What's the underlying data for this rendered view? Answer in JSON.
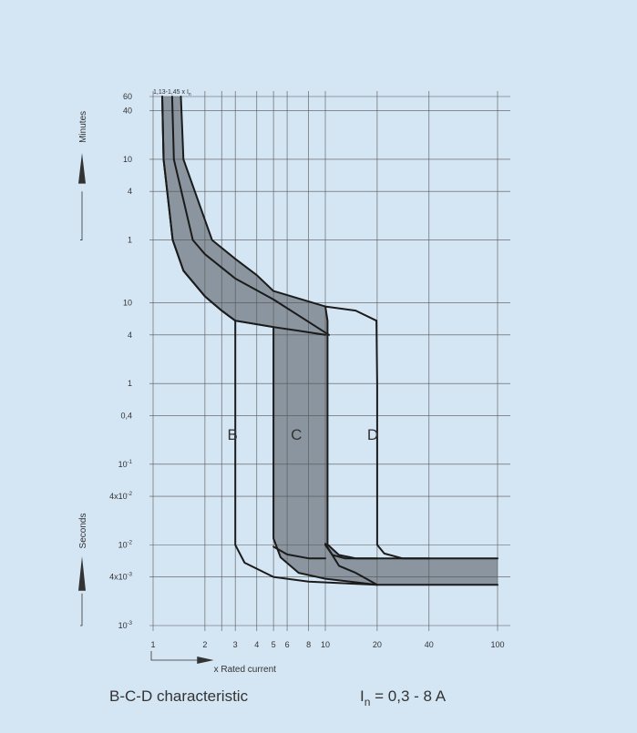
{
  "chart_data": {
    "type": "line",
    "title": "B-C-D characteristic",
    "rated_current_note": {
      "base": "I",
      "sub": "n",
      "value": " = 0,3 - 8 A"
    },
    "x_axis": {
      "label": "x Rated current",
      "scale": "log",
      "range": [
        1,
        100
      ],
      "ticks": [
        {
          "value": 1,
          "label": "1"
        },
        {
          "value": 2,
          "label": "2"
        },
        {
          "value": 3,
          "label": "3"
        },
        {
          "value": 4,
          "label": "4"
        },
        {
          "value": 5,
          "label": "5"
        },
        {
          "value": 6,
          "label": "6"
        },
        {
          "value": 8,
          "label": "8"
        },
        {
          "value": 10,
          "label": "10"
        },
        {
          "value": 20,
          "label": "20"
        },
        {
          "value": 40,
          "label": "40"
        },
        {
          "value": 100,
          "label": "100"
        }
      ]
    },
    "y_axis": {
      "scale": "log",
      "range_seconds": [
        0.001,
        3600
      ],
      "minutes_label": "Minutes",
      "seconds_label": "Seconds",
      "minute_ticks": [
        {
          "value": 60,
          "label": "60"
        },
        {
          "value": 40,
          "label": "40"
        },
        {
          "value": 10,
          "label": "10"
        },
        {
          "value": 4,
          "label": "4"
        },
        {
          "value": 1,
          "label": "1"
        }
      ],
      "second_ticks": [
        {
          "value": 10,
          "label": "10"
        },
        {
          "value": 4,
          "label": "4"
        },
        {
          "value": 1,
          "label": "1"
        },
        {
          "value": 0.4,
          "label": "0,4"
        },
        {
          "value": 0.1,
          "base": "10",
          "sup": "-1"
        },
        {
          "value": 0.04,
          "base": "4x10",
          "sup": "-2"
        },
        {
          "value": 0.01,
          "base": "10",
          "sup": "-2"
        },
        {
          "value": 0.004,
          "base": "4x10",
          "sup": "-3"
        },
        {
          "value": 0.001,
          "base": "10",
          "sup": "-3"
        }
      ]
    },
    "annotation": {
      "base": "1,13-1,45 x I",
      "sub": "n"
    },
    "regions": [
      {
        "name": "B",
        "label_at": [
          2.7,
          0.2
        ]
      },
      {
        "name": "C",
        "label_at": [
          6.3,
          0.2
        ]
      },
      {
        "name": "D",
        "label_at": [
          17.5,
          0.2
        ]
      }
    ],
    "series": [
      {
        "points": [
          [
            1.13,
            3600
          ],
          [
            1.15,
            600
          ],
          [
            1.3,
            60
          ],
          [
            1.5,
            25
          ],
          [
            2,
            12
          ],
          [
            2.5,
            8
          ],
          [
            3,
            6
          ],
          [
            5,
            5
          ],
          [
            7,
            4.5
          ],
          [
            10,
            4
          ]
        ]
      },
      {
        "points": [
          [
            1.45,
            3600
          ],
          [
            1.5,
            600
          ],
          [
            2.2,
            60
          ],
          [
            3,
            35
          ],
          [
            4,
            22
          ],
          [
            5,
            14
          ],
          [
            10,
            9
          ],
          [
            10.3,
            6
          ],
          [
            10.3,
            0.0101
          ],
          [
            12,
            0.0075
          ],
          [
            15,
            0.0068
          ],
          [
            30,
            0.0068
          ],
          [
            100,
            0.0068
          ]
        ]
      },
      {
        "points": [
          [
            1.13,
            3600
          ],
          [
            1.15,
            600
          ],
          [
            1.3,
            60
          ],
          [
            1.5,
            25
          ],
          [
            2,
            12
          ],
          [
            2.5,
            8
          ],
          [
            3,
            6
          ],
          [
            5,
            5
          ],
          [
            5,
            0.012
          ],
          [
            5.5,
            0.007
          ],
          [
            7,
            0.0045
          ],
          [
            10,
            0.0038
          ],
          [
            20,
            0.0032
          ],
          [
            100,
            0.0032
          ]
        ]
      },
      {
        "points": [
          [
            1.29,
            3600
          ],
          [
            1.32,
            600
          ],
          [
            1.7,
            60
          ],
          [
            2,
            40
          ],
          [
            3,
            20
          ],
          [
            5,
            11
          ],
          [
            10.5,
            4
          ]
        ]
      },
      {
        "points": [
          [
            3,
            6
          ],
          [
            3,
            0.01
          ],
          [
            3.4,
            0.006
          ],
          [
            5,
            0.004
          ],
          [
            8,
            0.0035
          ],
          [
            20,
            0.0032
          ]
        ]
      },
      {
        "points": [
          [
            10,
            0.01
          ],
          [
            11,
            0.0075
          ],
          [
            13,
            0.0068
          ],
          [
            20,
            0.0068
          ]
        ]
      },
      {
        "points": [
          [
            10,
            9
          ],
          [
            15,
            8
          ],
          [
            19.8,
            6
          ],
          [
            20,
            1
          ],
          [
            20,
            0.01
          ],
          [
            22,
            0.0078
          ],
          [
            28,
            0.0068
          ],
          [
            40,
            0.0068
          ]
        ]
      },
      {
        "points": [
          [
            5,
            0.0095
          ],
          [
            6,
            0.0076
          ],
          [
            8,
            0.0068
          ],
          [
            10,
            0.0068
          ]
        ]
      },
      {
        "points": [
          [
            10,
            0.0103
          ],
          [
            12,
            0.0055
          ],
          [
            15,
            0.0045
          ],
          [
            20,
            0.0032
          ]
        ]
      }
    ],
    "band": {
      "fill": "#8a959f",
      "edge": "#1b1b1b"
    },
    "grid": true,
    "colors": {
      "background": "#d4e5f4",
      "grid": "#555555",
      "band": "#8a959f",
      "curve": "#1b1b1b"
    }
  }
}
